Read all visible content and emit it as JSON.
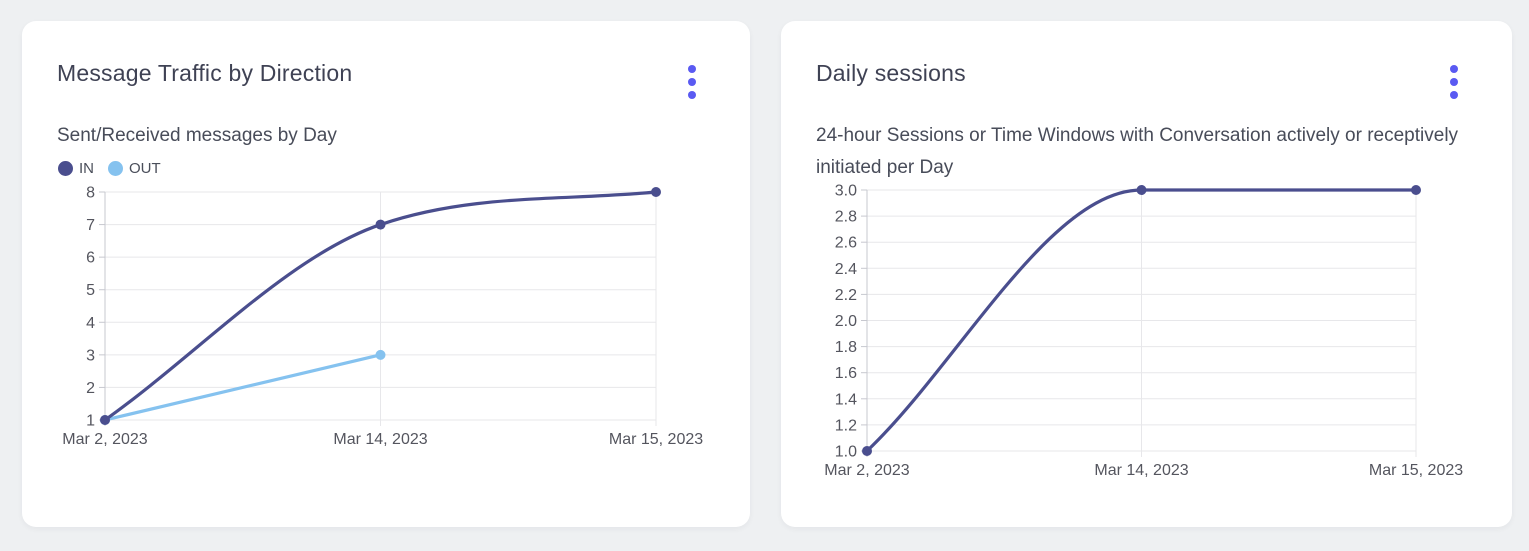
{
  "theme": {
    "page_background": "#eef0f2",
    "card_background": "#ffffff",
    "title_color": "#3f4254",
    "subtitle_color": "#484c59",
    "axis_text_color": "#54555e",
    "grid_color": "#e7e7ea",
    "axis_line_color": "#c7c8cf",
    "menu_icon_color": "#5a5af2"
  },
  "cards": [
    {
      "title": "Message Traffic by Direction",
      "subtitle": "Sent/Received messages by Day",
      "menu_icon": "kebab-menu-icon"
    },
    {
      "title": "Daily sessions",
      "subtitle": "24-hour Sessions or Time Windows with Conversation actively or receptively initiated per Day",
      "menu_icon": "kebab-menu-icon"
    }
  ],
  "chart_data": [
    {
      "type": "line",
      "title": "Message Traffic by Direction",
      "subtitle": "Sent/Received messages by Day",
      "categories": [
        "Mar 2, 2023",
        "Mar 14, 2023",
        "Mar 15, 2023"
      ],
      "series": [
        {
          "name": "IN",
          "values": [
            1,
            7,
            8
          ],
          "color": "#4a4e8e"
        },
        {
          "name": "OUT",
          "values": [
            1,
            3,
            null
          ],
          "color": "#85c2ef"
        }
      ],
      "ylim": [
        1,
        8
      ],
      "ytick_step": 1,
      "y_decimals": 0,
      "grid": true,
      "smooth": true,
      "legend_position": "top-left"
    },
    {
      "type": "line",
      "title": "Daily sessions",
      "subtitle": "24-hour Sessions or Time Windows with Conversation actively or receptively initiated per Day",
      "categories": [
        "Mar 2, 2023",
        "Mar 14, 2023",
        "Mar 15, 2023"
      ],
      "series": [
        {
          "name": "Daily sessions",
          "values": [
            1,
            3,
            3
          ],
          "color": "#4a4e8e"
        }
      ],
      "ylim": [
        1.0,
        3.0
      ],
      "ytick_step": 0.2,
      "y_decimals": 1,
      "grid": true,
      "smooth": true,
      "legend_position": "none"
    }
  ]
}
